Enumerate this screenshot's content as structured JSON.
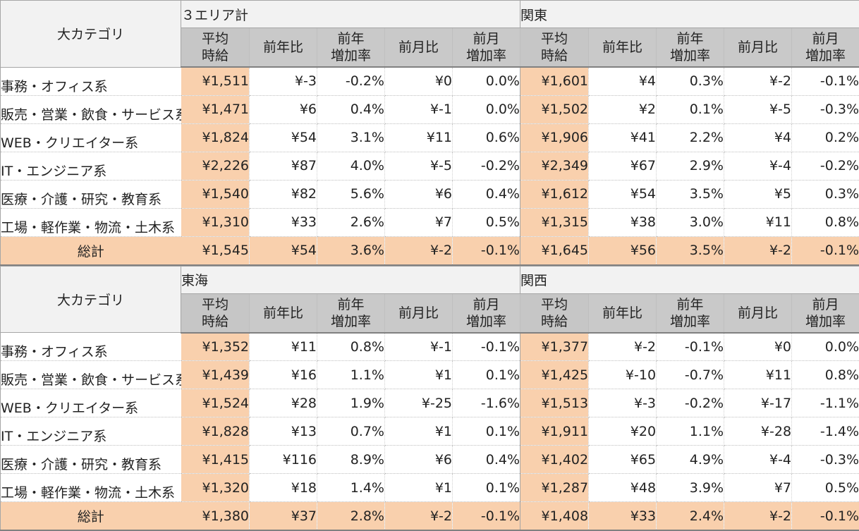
{
  "header": {
    "category_label": "大カテゴリ",
    "columns": [
      "平均\n時給",
      "前年比",
      "前年\n増加率",
      "前月比",
      "前月\n増加率"
    ]
  },
  "tables": [
    {
      "regions": [
        {
          "name": "３エリア計",
          "rows": [
            [
              "¥1,511",
              "¥-3",
              "-0.2%",
              "¥0",
              "0.0%"
            ],
            [
              "¥1,471",
              "¥6",
              "0.4%",
              "¥-1",
              "0.0%"
            ],
            [
              "¥1,824",
              "¥54",
              "3.1%",
              "¥11",
              "0.6%"
            ],
            [
              "¥2,226",
              "¥87",
              "4.0%",
              "¥-5",
              "-0.2%"
            ],
            [
              "¥1,540",
              "¥82",
              "5.6%",
              "¥6",
              "0.4%"
            ],
            [
              "¥1,310",
              "¥33",
              "2.6%",
              "¥7",
              "0.5%"
            ]
          ],
          "total": [
            "¥1,545",
            "¥54",
            "3.6%",
            "¥-2",
            "-0.1%"
          ],
          "red_cells": [
            [
              0,
              1
            ],
            [
              0,
              2
            ],
            [
              1,
              3
            ],
            [
              1,
              4
            ],
            [
              3,
              3
            ],
            [
              3,
              4
            ]
          ],
          "red_total": [
            3,
            4
          ]
        },
        {
          "name": "関東",
          "rows": [
            [
              "¥1,601",
              "¥4",
              "0.3%",
              "¥-2",
              "-0.1%"
            ],
            [
              "¥1,502",
              "¥2",
              "0.1%",
              "¥-5",
              "-0.3%"
            ],
            [
              "¥1,906",
              "¥41",
              "2.2%",
              "¥4",
              "0.2%"
            ],
            [
              "¥2,349",
              "¥67",
              "2.9%",
              "¥-4",
              "-0.2%"
            ],
            [
              "¥1,612",
              "¥54",
              "3.5%",
              "¥5",
              "0.3%"
            ],
            [
              "¥1,315",
              "¥38",
              "3.0%",
              "¥11",
              "0.8%"
            ]
          ],
          "total": [
            "¥1,645",
            "¥56",
            "3.5%",
            "¥-2",
            "-0.1%"
          ],
          "red_cells": [
            [
              0,
              3
            ],
            [
              0,
              4
            ],
            [
              1,
              3
            ],
            [
              1,
              4
            ],
            [
              3,
              3
            ],
            [
              3,
              4
            ]
          ],
          "red_total": [
            3,
            4
          ]
        }
      ]
    },
    {
      "regions": [
        {
          "name": "東海",
          "rows": [
            [
              "¥1,352",
              "¥11",
              "0.8%",
              "¥-1",
              "-0.1%"
            ],
            [
              "¥1,439",
              "¥16",
              "1.1%",
              "¥1",
              "0.1%"
            ],
            [
              "¥1,524",
              "¥28",
              "1.9%",
              "¥-25",
              "-1.6%"
            ],
            [
              "¥1,828",
              "¥13",
              "0.7%",
              "¥1",
              "0.1%"
            ],
            [
              "¥1,415",
              "¥116",
              "8.9%",
              "¥6",
              "0.4%"
            ],
            [
              "¥1,320",
              "¥18",
              "1.4%",
              "¥1",
              "0.1%"
            ]
          ],
          "total": [
            "¥1,380",
            "¥37",
            "2.8%",
            "¥-2",
            "-0.1%"
          ],
          "red_cells": [
            [
              0,
              3
            ],
            [
              0,
              4
            ],
            [
              2,
              3
            ],
            [
              2,
              4
            ]
          ],
          "red_total": [
            3,
            4
          ]
        },
        {
          "name": "関西",
          "rows": [
            [
              "¥1,377",
              "¥-2",
              "-0.1%",
              "¥0",
              "0.0%"
            ],
            [
              "¥1,425",
              "¥-10",
              "-0.7%",
              "¥11",
              "0.8%"
            ],
            [
              "¥1,513",
              "¥-3",
              "-0.2%",
              "¥-17",
              "-1.1%"
            ],
            [
              "¥1,911",
              "¥20",
              "1.1%",
              "¥-28",
              "-1.4%"
            ],
            [
              "¥1,402",
              "¥65",
              "4.9%",
              "¥-4",
              "-0.3%"
            ],
            [
              "¥1,287",
              "¥48",
              "3.9%",
              "¥7",
              "0.5%"
            ]
          ],
          "total": [
            "¥1,408",
            "¥33",
            "2.4%",
            "¥-2",
            "-0.1%"
          ],
          "red_cells": [
            [
              0,
              1
            ],
            [
              0,
              2
            ],
            [
              1,
              1
            ],
            [
              1,
              2
            ],
            [
              2,
              1
            ],
            [
              2,
              2
            ],
            [
              2,
              3
            ],
            [
              2,
              4
            ],
            [
              3,
              3
            ],
            [
              3,
              4
            ],
            [
              4,
              3
            ],
            [
              4,
              4
            ]
          ],
          "red_total": [
            3,
            4
          ]
        }
      ]
    }
  ],
  "categories": [
    "事務・オフィス系",
    "販売・営業・飲食・サービス系",
    "WEB・クリエイター系",
    "IT・エンジニア系",
    "医療・介護・研究・教育系",
    "工場・軽作業・物流・土木系"
  ],
  "total_label": "総計",
  "colors": {
    "highlight": "#f9d0ad",
    "header_gray": "#c9c9c9",
    "negative_red": "#ee0000"
  }
}
